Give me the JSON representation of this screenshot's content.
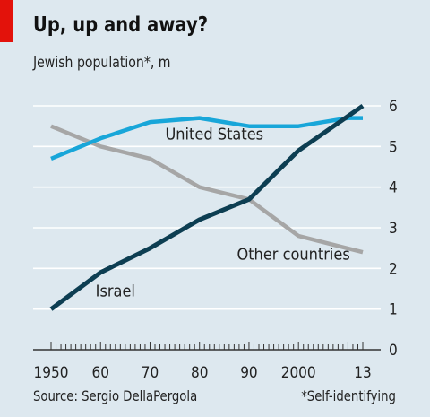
{
  "header": {
    "title": "Up, up and away?",
    "subtitle": "Jewish population*, m"
  },
  "footer": {
    "source": "Source: Sergio DellaPergola",
    "note": "*Self-identifying"
  },
  "colors": {
    "background": "#dde8ef",
    "brand_red": "#e3120b",
    "grid": "#ffffff",
    "axis": "#333333",
    "us": "#18a6d9",
    "israel": "#0d3e52",
    "other": "#a6a6a6"
  },
  "chart_data": {
    "type": "line",
    "title": "Up, up and away?",
    "subtitle": "Jewish population*, m",
    "xlabel": "",
    "ylabel": "",
    "xlim": [
      1950,
      2013
    ],
    "ylim": [
      0,
      6
    ],
    "y_axis_side": "right",
    "y_ticks": [
      0,
      1,
      2,
      3,
      4,
      5,
      6
    ],
    "x_tick_labels": [
      {
        "x": 1950,
        "label": "1950"
      },
      {
        "x": 1960,
        "label": "60"
      },
      {
        "x": 1970,
        "label": "70"
      },
      {
        "x": 1980,
        "label": "80"
      },
      {
        "x": 1990,
        "label": "90"
      },
      {
        "x": 2000,
        "label": "2000"
      },
      {
        "x": 2013,
        "label": "13"
      }
    ],
    "grid": true,
    "legend": "inline labels",
    "series": [
      {
        "name": "United States",
        "color": "#18a6d9",
        "points": [
          [
            1950,
            4.7
          ],
          [
            1960,
            5.2
          ],
          [
            1970,
            5.6
          ],
          [
            1980,
            5.7
          ],
          [
            1990,
            5.5
          ],
          [
            2000,
            5.5
          ],
          [
            2010,
            5.7
          ],
          [
            2013,
            5.7
          ]
        ]
      },
      {
        "name": "Israel",
        "color": "#0d3e52",
        "points": [
          [
            1950,
            1.0
          ],
          [
            1960,
            1.9
          ],
          [
            1970,
            2.5
          ],
          [
            1980,
            3.2
          ],
          [
            1990,
            3.7
          ],
          [
            2000,
            4.9
          ],
          [
            2013,
            6.0
          ]
        ]
      },
      {
        "name": "Other countries",
        "color": "#a6a6a6",
        "points": [
          [
            1950,
            5.5
          ],
          [
            1960,
            5.0
          ],
          [
            1970,
            4.7
          ],
          [
            1980,
            4.0
          ],
          [
            1990,
            3.7
          ],
          [
            2000,
            2.8
          ],
          [
            2013,
            2.4
          ]
        ]
      }
    ],
    "series_labels": [
      {
        "series": "United States",
        "x": 1983,
        "y": 5.3
      },
      {
        "series": "Other countries",
        "x": 1999,
        "y": 2.35
      },
      {
        "series": "Israel",
        "x": 1963,
        "y": 1.45
      }
    ]
  }
}
